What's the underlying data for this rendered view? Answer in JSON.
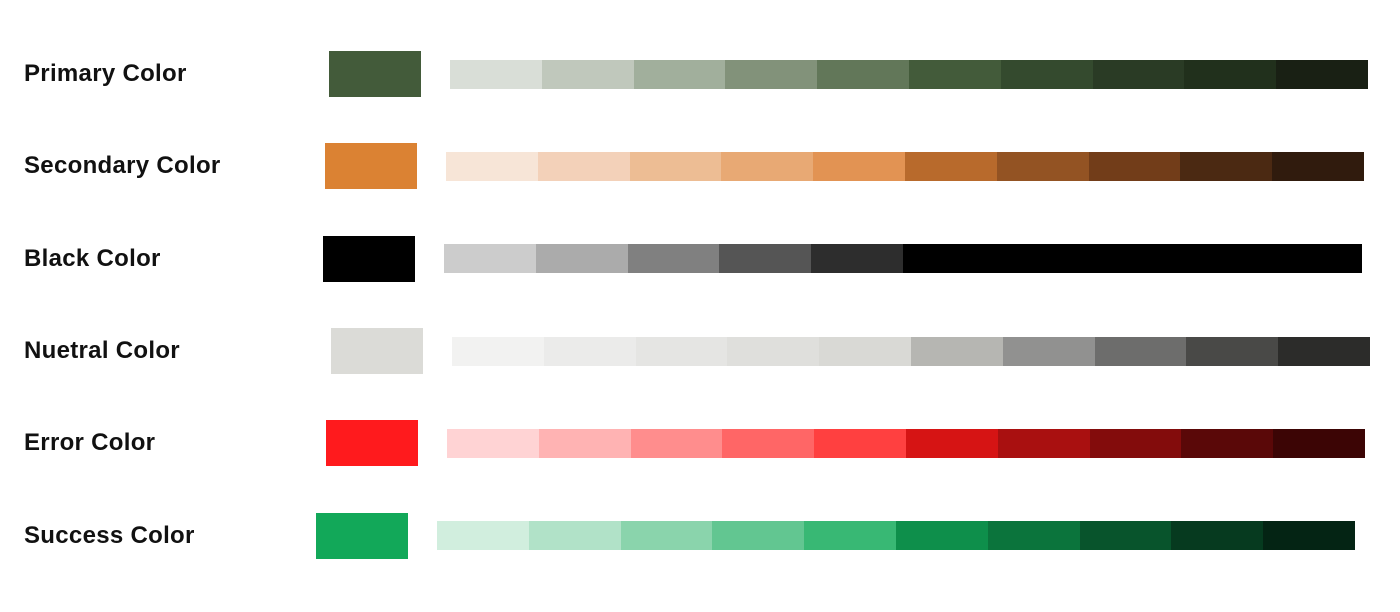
{
  "palettes": [
    {
      "label": "Primary Color",
      "base": "#435B3A",
      "shades": [
        "#D9DED7",
        "#C0C8BC",
        "#A1AF9C",
        "#82927A",
        "#627759",
        "#435B3A",
        "#344A2E",
        "#2A3B25",
        "#21301C",
        "#192014"
      ]
    },
    {
      "label": "Secondary Color",
      "base": "#DB8233",
      "shades": [
        "#F7E5D7",
        "#F3D1B9",
        "#EDBD94",
        "#E8A974",
        "#E29353",
        "#B86A2C",
        "#935323",
        "#723D19",
        "#4B2912",
        "#301B0D"
      ]
    },
    {
      "label": "Black Color",
      "base": "#000000",
      "shades": [
        "#CCCCCC",
        "#ABABAB",
        "#808080",
        "#555555",
        "#2D2D2D",
        "#000000",
        "#000000",
        "#000000",
        "#000000",
        "#000000"
      ]
    },
    {
      "label": "Nuetral Color",
      "base": "#DBDBD7",
      "shades": [
        "#F2F2F1",
        "#EBEBEA",
        "#E5E5E3",
        "#DFDFDC",
        "#D9D9D5",
        "#B6B6B2",
        "#919190",
        "#6D6D6C",
        "#494947",
        "#2C2C2A"
      ]
    },
    {
      "label": "Error Color",
      "base": "#FF1A1D",
      "shades": [
        "#FFD3D4",
        "#FFB3B3",
        "#FF8D8D",
        "#FF6666",
        "#FF4040",
        "#D61414",
        "#A91010",
        "#830C0C",
        "#5A0808",
        "#3C0505"
      ]
    },
    {
      "label": "Success Color",
      "base": "#12A859",
      "shades": [
        "#D1EEDE",
        "#B1E2C8",
        "#8AD4AC",
        "#62C691",
        "#38B874",
        "#0E8F4B",
        "#0B743C",
        "#08542C",
        "#063A1F",
        "#042414"
      ]
    }
  ]
}
